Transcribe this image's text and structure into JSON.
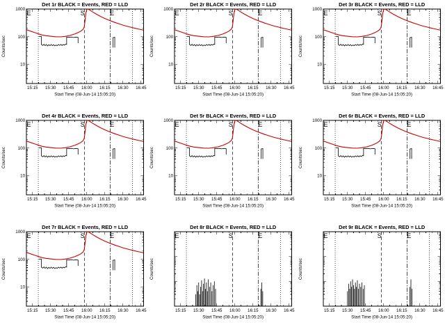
{
  "window": {
    "background": "#ffffff"
  },
  "chart_defaults": {
    "type": "line",
    "xlabel": "Start Time (08-Jun-14 15:05:20)",
    "ylabel": "Counts/sec",
    "xlim": [
      10,
      107
    ],
    "ylim": [
      2,
      1000
    ],
    "xminor_step": 5,
    "xticks": [
      {
        "t": 15,
        "label": "15:15"
      },
      {
        "t": 30,
        "label": "15:30"
      },
      {
        "t": 45,
        "label": "15:45"
      },
      {
        "t": 60,
        "label": "16:00"
      },
      {
        "t": 75,
        "label": "16:15"
      },
      {
        "t": 90,
        "label": "16:30"
      },
      {
        "t": 105,
        "label": "16:45"
      }
    ],
    "yticks": [
      {
        "v": 10,
        "label": "10"
      },
      {
        "v": 100,
        "label": "100"
      },
      {
        "v": 1000,
        "label": "1000"
      }
    ],
    "ref_lines": [
      {
        "t": 19.8,
        "style": "dotted"
      },
      {
        "t": 58,
        "style": "dashed"
      },
      {
        "t": 79.5,
        "style": "dashdot"
      },
      {
        "t": 97.8,
        "style": "dotted"
      }
    ],
    "flags": [
      {
        "t": 12,
        "label": "E"
      },
      {
        "t": 56.5,
        "label": "S"
      },
      {
        "t": 81,
        "label": "E"
      }
    ],
    "legend_note": "BLACK = Events, RED = LLD",
    "colors": {
      "events": "#000000",
      "lld": "#cc0000"
    }
  },
  "series_library": {
    "red_main": [
      [
        10,
        178
      ],
      [
        14,
        155
      ],
      [
        18,
        135
      ],
      [
        22,
        118
      ],
      [
        26,
        108
      ],
      [
        30,
        103
      ],
      [
        34,
        99
      ],
      [
        38,
        98
      ],
      [
        42,
        102
      ],
      [
        46,
        110
      ],
      [
        50,
        124
      ],
      [
        53,
        142
      ],
      [
        55,
        158
      ],
      [
        57,
        185
      ],
      [
        58,
        230
      ],
      [
        58.7,
        420
      ],
      [
        59.3,
        720
      ],
      [
        60,
        960
      ],
      [
        61,
        1000
      ],
      [
        62,
        950
      ],
      [
        63.5,
        860
      ],
      [
        65,
        780
      ],
      [
        67,
        690
      ],
      [
        69,
        615
      ],
      [
        72,
        525
      ],
      [
        75,
        455
      ],
      [
        78,
        400
      ],
      [
        81,
        355
      ],
      [
        84,
        318
      ],
      [
        87,
        288
      ],
      [
        90,
        262
      ],
      [
        93,
        240
      ],
      [
        96,
        222
      ],
      [
        99,
        206
      ],
      [
        102,
        192
      ],
      [
        105,
        180
      ],
      [
        107,
        172
      ]
    ],
    "black_events_a": [
      [
        20.3,
        102
      ],
      [
        22.3,
        102
      ],
      [
        22.3,
        52
      ],
      [
        23.5,
        48
      ],
      [
        24.5,
        53
      ],
      [
        25.5,
        47
      ],
      [
        26.5,
        52
      ],
      [
        27.5,
        46
      ],
      [
        28.5,
        51
      ],
      [
        29.5,
        47
      ],
      [
        30.5,
        52
      ],
      [
        31.5,
        47
      ],
      [
        32.5,
        51
      ],
      [
        33.5,
        46
      ],
      [
        34.5,
        50
      ],
      [
        35.5,
        47
      ],
      [
        36.5,
        52
      ],
      [
        37.5,
        48
      ],
      [
        38.5,
        52
      ],
      [
        39.5,
        48
      ],
      [
        40.5,
        52
      ],
      [
        41.5,
        49
      ],
      [
        42.5,
        54
      ],
      [
        43.3,
        52
      ],
      [
        43.3,
        97
      ],
      [
        45,
        94
      ],
      [
        47,
        97
      ],
      [
        49,
        93
      ],
      [
        51,
        96
      ],
      [
        52.8,
        94
      ],
      [
        52.8,
        58
      ]
    ],
    "black_events_b": [
      [
        81.8,
        40
      ],
      [
        81.8,
        92
      ],
      [
        83.2,
        95
      ],
      [
        83.2,
        40
      ]
    ],
    "spikes_det8": [
      [
        27.5,
        3
      ],
      [
        28.5,
        7
      ],
      [
        29.2,
        4
      ],
      [
        30,
        9
      ],
      [
        30.8,
        3
      ],
      [
        31.6,
        6
      ],
      [
        32.4,
        11
      ],
      [
        33.2,
        4
      ],
      [
        34,
        8
      ],
      [
        34.8,
        13
      ],
      [
        35.6,
        5
      ],
      [
        36.4,
        9
      ],
      [
        37.2,
        4
      ],
      [
        38,
        12
      ],
      [
        39,
        6
      ],
      [
        40,
        9
      ],
      [
        41,
        4
      ],
      [
        42,
        7
      ],
      [
        43,
        10
      ],
      [
        44,
        5
      ],
      [
        81.5,
        5
      ],
      [
        82.3,
        9
      ],
      [
        83.1,
        4
      ]
    ],
    "spikes_det9": [
      [
        30,
        4
      ],
      [
        31,
        8
      ],
      [
        31.8,
        5
      ],
      [
        32.6,
        10
      ],
      [
        33.4,
        6
      ],
      [
        34.2,
        12
      ],
      [
        35,
        7
      ],
      [
        35.8,
        5
      ],
      [
        36.6,
        9
      ],
      [
        37.4,
        6
      ],
      [
        38.2,
        11
      ],
      [
        39,
        5
      ],
      [
        40,
        8
      ],
      [
        41,
        6
      ],
      [
        42,
        9
      ],
      [
        43,
        5
      ],
      [
        44,
        7
      ],
      [
        81.8,
        6
      ],
      [
        82.6,
        12
      ],
      [
        83.4,
        5
      ]
    ]
  },
  "chart_data": [
    {
      "title": "Det 1r BLACK = Events, RED = LLD",
      "red": "red_main",
      "black": [
        "black_events_a",
        "black_events_b"
      ]
    },
    {
      "title": "Det 2r BLACK = Events, RED = LLD",
      "red": "red_main",
      "black": [
        "black_events_a",
        "black_events_b"
      ]
    },
    {
      "title": "Det 3r BLACK = Events, RED = LLD",
      "red": "red_main",
      "black": [
        "black_events_a",
        "black_events_b"
      ]
    },
    {
      "title": "Det 4r BLACK = Events, RED = LLD",
      "red": "red_main",
      "black": [
        "black_events_a",
        "black_events_b"
      ]
    },
    {
      "title": "Det 5r BLACK = Events, RED = LLD",
      "red": "red_main",
      "black": [
        "black_events_a",
        "black_events_b"
      ]
    },
    {
      "title": "Det 6r BLACK = Events, RED = LLD",
      "red": "red_main",
      "black": [
        "black_events_a",
        "black_events_b"
      ]
    },
    {
      "title": "Det 7r BLACK = Events, RED = LLD",
      "red": "red_main",
      "black": [
        "black_events_a",
        "black_events_b"
      ]
    },
    {
      "title": "Det 8r BLACK = Events, RED = LLD",
      "spikes": "spikes_det8",
      "ylim": [
        1,
        1000
      ],
      "yticks": []
    },
    {
      "title": "Det 9r BLACK = Events, RED = LLD",
      "spikes": "spikes_det9",
      "ylim": [
        1,
        1000
      ],
      "yticks": []
    }
  ]
}
